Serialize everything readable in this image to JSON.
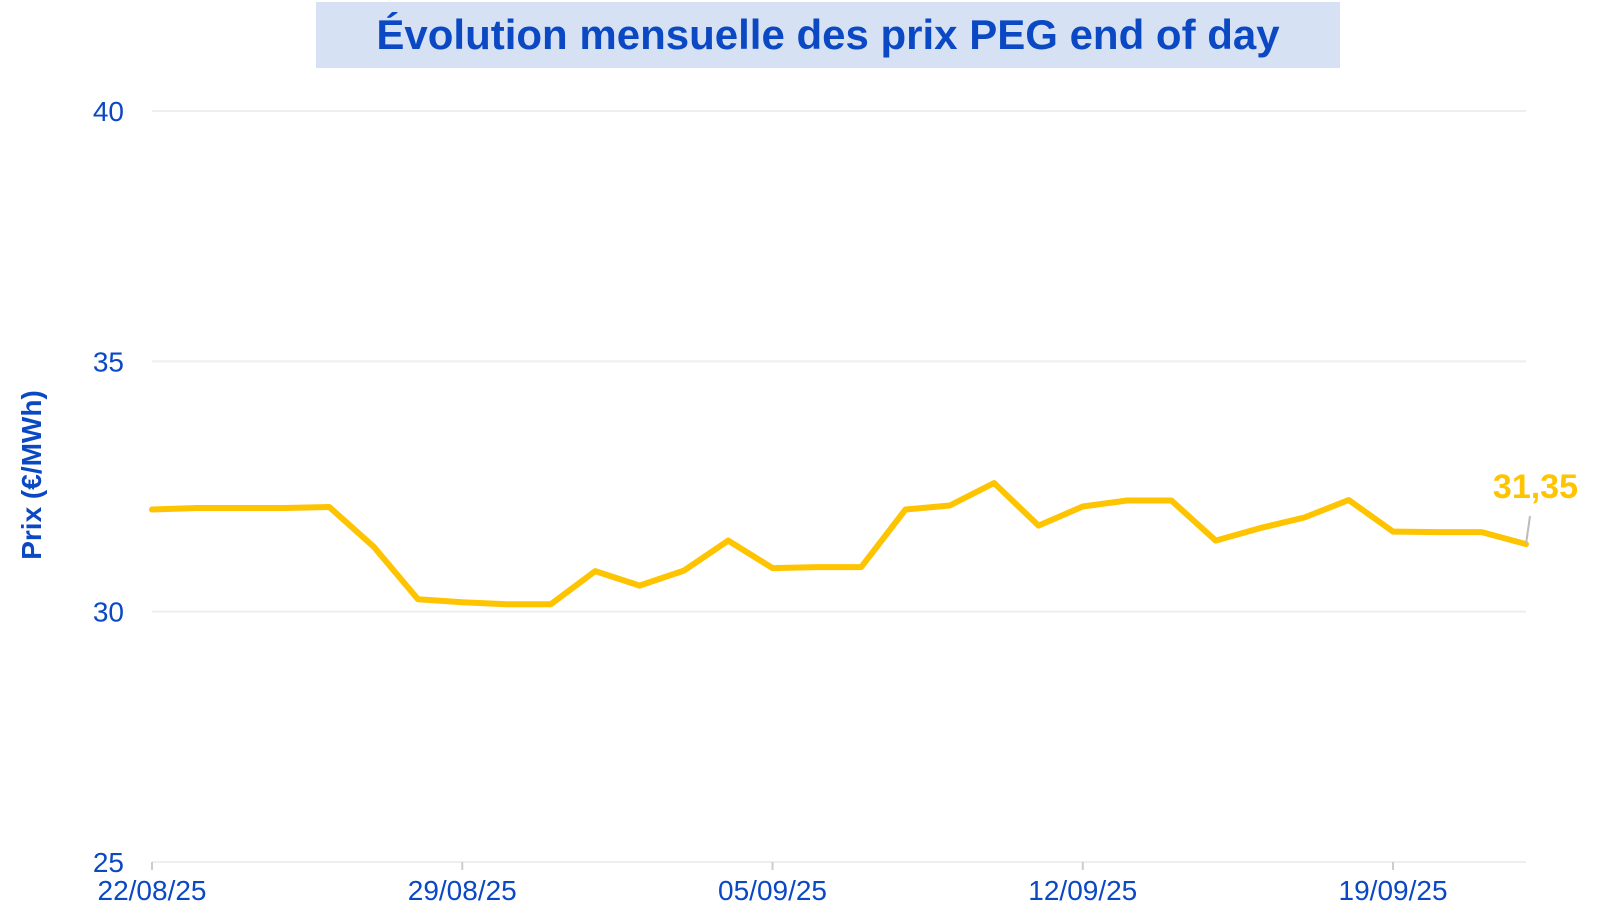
{
  "chart_data": {
    "type": "line",
    "title": "Évolution mensuelle des prix PEG end of day",
    "ylabel": "Prix (€/MWh)",
    "xlabel": "",
    "ylim": [
      25,
      40
    ],
    "yticks": [
      25,
      30,
      35,
      40
    ],
    "xlim": [
      "2025-08-22",
      "2025-09-22"
    ],
    "xticks": [
      {
        "date": "2025-08-22",
        "label": "22/08/25"
      },
      {
        "date": "2025-08-29",
        "label": "29/08/25"
      },
      {
        "date": "2025-09-05",
        "label": "05/09/25"
      },
      {
        "date": "2025-09-12",
        "label": "12/09/25"
      },
      {
        "date": "2025-09-19",
        "label": "19/09/25"
      }
    ],
    "grid": "horizontal",
    "series": [
      {
        "color": "#ffc400",
        "points": [
          [
            "2025-08-22",
            32.04
          ],
          [
            "2025-08-23",
            32.07
          ],
          [
            "2025-08-24",
            32.07
          ],
          [
            "2025-08-25",
            32.07
          ],
          [
            "2025-08-26",
            32.09
          ],
          [
            "2025-08-27",
            31.3
          ],
          [
            "2025-08-28",
            30.25
          ],
          [
            "2025-08-29",
            30.19
          ],
          [
            "2025-08-30",
            30.15
          ],
          [
            "2025-08-31",
            30.15
          ],
          [
            "2025-09-01",
            30.81
          ],
          [
            "2025-09-02",
            30.52
          ],
          [
            "2025-09-03",
            30.82
          ],
          [
            "2025-09-04",
            31.42
          ],
          [
            "2025-09-05",
            30.87
          ],
          [
            "2025-09-06",
            30.89
          ],
          [
            "2025-09-07",
            30.89
          ],
          [
            "2025-09-08",
            32.04
          ],
          [
            "2025-09-09",
            32.12
          ],
          [
            "2025-09-10",
            32.57
          ],
          [
            "2025-09-11",
            31.72
          ],
          [
            "2025-09-12",
            32.1
          ],
          [
            "2025-09-13",
            32.22
          ],
          [
            "2025-09-14",
            32.22
          ],
          [
            "2025-09-15",
            31.42
          ],
          [
            "2025-09-16",
            31.67
          ],
          [
            "2025-09-17",
            31.88
          ],
          [
            "2025-09-18",
            32.23
          ],
          [
            "2025-09-19",
            31.6
          ],
          [
            "2025-09-20",
            31.59
          ],
          [
            "2025-09-21",
            31.59
          ],
          [
            "2025-09-22",
            31.35
          ]
        ]
      }
    ],
    "last_value_label": "31,35"
  },
  "colors": {
    "title": "#0b48c4",
    "title_bg": "#d6e1f3",
    "axis_text": "#0b48c4",
    "line": "#ffc400",
    "grid": "#eeeeee"
  }
}
